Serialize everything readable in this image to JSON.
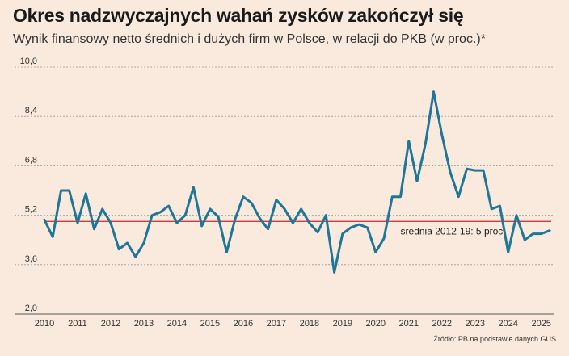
{
  "chart_data": {
    "type": "line",
    "title": "Okres nadzwyczajnych wahań zysków zakończył się",
    "subtitle": "Wynik finansowy netto średnich i dużych firm w Polsce, w relacji do PKB (w proc.)*",
    "ylim": [
      2.0,
      10.0
    ],
    "yticks": [
      2.0,
      3.6,
      5.2,
      6.8,
      8.4,
      10.0
    ],
    "ytick_labels": [
      "2,0",
      "3,6",
      "5,2",
      "6,8",
      "8,4",
      "10,0"
    ],
    "xlim": [
      2010,
      2025.3
    ],
    "xticks": [
      2010,
      2011,
      2012,
      2013,
      2014,
      2015,
      2016,
      2017,
      2018,
      2019,
      2020,
      2021,
      2022,
      2023,
      2024,
      2025
    ],
    "xtick_labels": [
      "2010",
      "2011",
      "2012",
      "2013",
      "2014",
      "2015",
      "2016",
      "2017",
      "2018",
      "2019",
      "2020",
      "2021",
      "2022",
      "2023",
      "2024",
      "2025"
    ],
    "grid": "horizontal dashed",
    "reference_line": {
      "value": 5.0,
      "label": "średnia 2012-19: 5 proc.",
      "color": "#cf2626"
    },
    "series": [
      {
        "color": "#1f7698",
        "x": [
          2010.0,
          2010.25,
          2010.5,
          2010.75,
          2011.0,
          2011.25,
          2011.5,
          2011.75,
          2012.0,
          2012.25,
          2012.5,
          2012.75,
          2013.0,
          2013.25,
          2013.5,
          2013.75,
          2014.0,
          2014.25,
          2014.5,
          2014.75,
          2015.0,
          2015.25,
          2015.5,
          2015.75,
          2016.0,
          2016.25,
          2016.5,
          2016.75,
          2017.0,
          2017.25,
          2017.5,
          2017.75,
          2018.0,
          2018.25,
          2018.5,
          2018.75,
          2019.0,
          2019.25,
          2019.5,
          2019.75,
          2020.0,
          2020.25,
          2020.5,
          2020.75,
          2021.0,
          2021.25,
          2021.5,
          2021.75,
          2022.0,
          2022.25,
          2022.5,
          2022.75,
          2023.0,
          2023.25,
          2023.5,
          2023.75,
          2024.0,
          2024.25,
          2024.5,
          2024.75,
          2025.0,
          2025.25
        ],
        "values": [
          5.05,
          4.5,
          6.0,
          6.0,
          4.95,
          5.9,
          4.75,
          5.4,
          4.95,
          4.1,
          4.3,
          3.85,
          4.3,
          5.2,
          5.3,
          5.5,
          4.95,
          5.2,
          6.1,
          4.85,
          5.4,
          5.15,
          4.0,
          5.05,
          5.8,
          5.6,
          5.1,
          4.75,
          5.7,
          5.4,
          4.95,
          5.4,
          4.95,
          4.65,
          5.2,
          3.35,
          4.6,
          4.8,
          4.9,
          4.8,
          4.0,
          4.45,
          5.8,
          5.8,
          7.6,
          6.3,
          7.5,
          9.2,
          7.8,
          6.6,
          5.8,
          6.7,
          6.65,
          6.65,
          5.4,
          5.5,
          4.0,
          5.2,
          4.4,
          4.6,
          4.6,
          4.7
        ]
      }
    ]
  },
  "source": "Źródło: PB na podstawie danych GUS"
}
